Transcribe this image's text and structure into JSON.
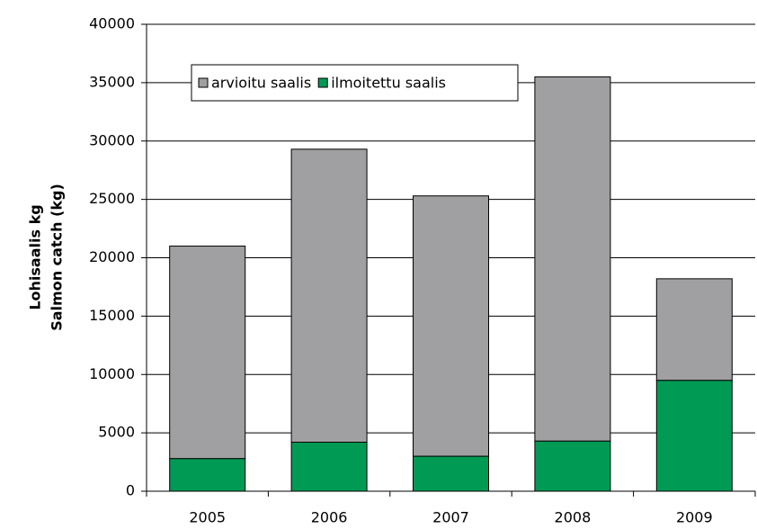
{
  "chart_data": {
    "type": "stacked-bar",
    "y_label_lines": [
      "Lohisaalis kg",
      "Salmon catch (kg)"
    ],
    "categories": [
      "2005",
      "2006",
      "2007",
      "2008",
      "2009"
    ],
    "series": [
      {
        "name": "arvioitu saalis",
        "color": "#a0a0a2",
        "values": [
          18200,
          25100,
          22300,
          31200,
          8700
        ]
      },
      {
        "name": "ilmoitettu saalis",
        "color": "#009a55",
        "values": [
          2800,
          4200,
          3000,
          4300,
          9500
        ]
      }
    ],
    "ylim": [
      0,
      40000
    ],
    "yticks": [
      0,
      5000,
      10000,
      15000,
      20000,
      25000,
      30000,
      35000,
      40000
    ],
    "grid": true,
    "legend": "top-left"
  }
}
